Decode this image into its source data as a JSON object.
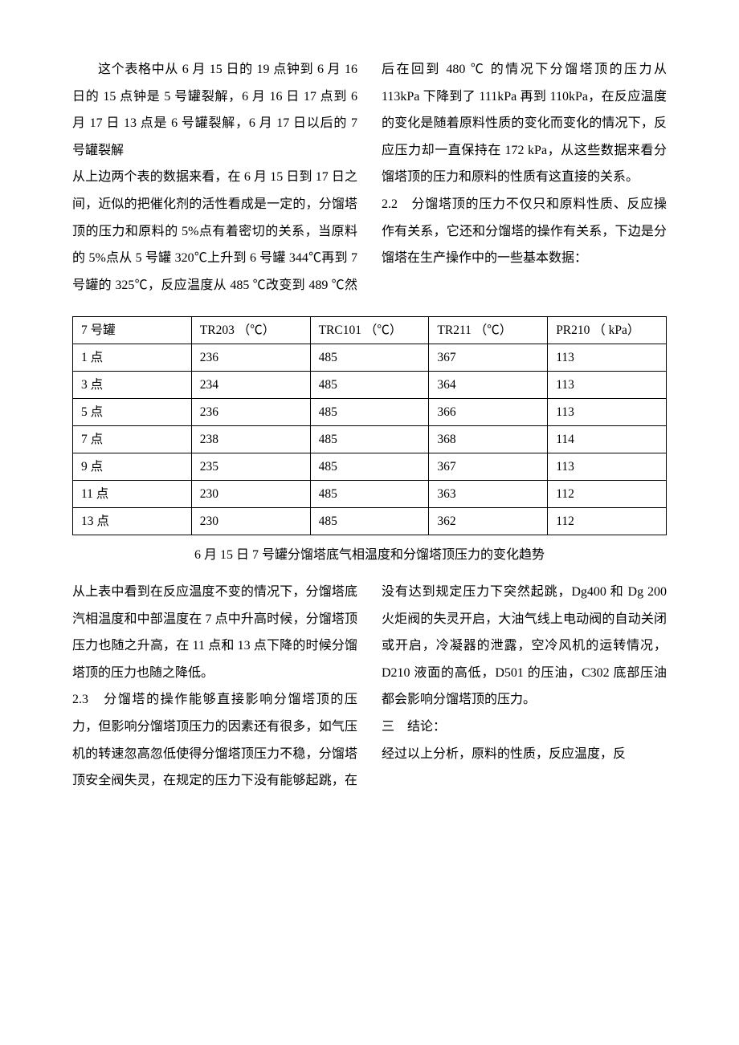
{
  "top_text": {
    "p1_a": "这个表格中从 6 月 15 日的 19 点钟到 6 月 16 日的 15 点钟是 5 号罐裂解，6 月 16 日 17 点到 6 月 17 日 13 点是 6 号罐裂解，6 月 17 日以后的 7 号罐裂解",
    "p1_b": "从上边两个表的数据来看，在 6 月 15 日到 17 日之间，近似的把催化剂的活性看成是一定的，分馏塔顶的压力和原料的 5%点有着密切的关系，当原料的 5%点从 5 号罐 320℃上升到 6 号罐 344℃再到 7 号罐的 325℃，反应温度从 485 ℃改变到 489 ℃然后在回到 480 ℃ 的情况下分馏塔顶的压力从 113kPa 下降到了 111kPa 再到 110kPa，在反应温度的变化是随着原料性质的变化而变化的情况下，反应压力却一直保持在 172 kPa，从这些数据来看分馏塔顶的压力和原料的性质有这直接的关系。",
    "p2": "2.2　分馏塔顶的压力不仅只和原料性质、反应操作有关系，它还和分馏塔的操作有关系，下边是分馏塔在生产操作中的一些基本数据："
  },
  "table": {
    "columns": [
      "7 号罐",
      "TR203    （℃）",
      "TRC101    （℃）",
      "TR211    （℃）",
      "PR210    （ kPa）"
    ],
    "rows": [
      [
        "1 点",
        "236",
        "485",
        "367",
        "113"
      ],
      [
        "3 点",
        "234",
        "485",
        "364",
        "113"
      ],
      [
        "5 点",
        "236",
        "485",
        "366",
        "113"
      ],
      [
        "7 点",
        "238",
        "485",
        "368",
        "114"
      ],
      [
        "9 点",
        "235",
        "485",
        "367",
        "113"
      ],
      [
        "11 点",
        "230",
        "485",
        "363",
        "112"
      ],
      [
        "13 点",
        "230",
        "485",
        "362",
        "112"
      ]
    ],
    "caption": "6 月 15 日 7 号罐分馏塔底气相温度和分馏塔顶压力的变化趋势"
  },
  "bottom_text": {
    "p1": "从上表中看到在反应温度不变的情况下，分馏塔底汽相温度和中部温度在 7 点中升高时候，分馏塔顶压力也随之升高，在 11 点和 13 点下降的时候分馏塔顶的压力也随之降低。",
    "p2": "2.3　分馏塔的操作能够直接影响分馏塔顶的压力，但影响分馏塔顶压力的因素还有很多，如气压机的转速忽高忽低使得分馏塔顶压力不稳，分馏塔顶安全阀失灵，在规定的压力下没有能够起跳，在没有达到规定压力下突然起跳，Dg400 和 Dg 200 火炬阀的失灵开启，大油气线上电动阀的自动关闭或开启，冷凝器的泄露，空冷风机的运转情况，D210 液面的高低，D501 的压油，C302 底部压油都会影响分馏塔顶的压力。",
    "p3": "三　结论：",
    "p3b": "经过以上分析，原料的性质，反应温度，反"
  }
}
